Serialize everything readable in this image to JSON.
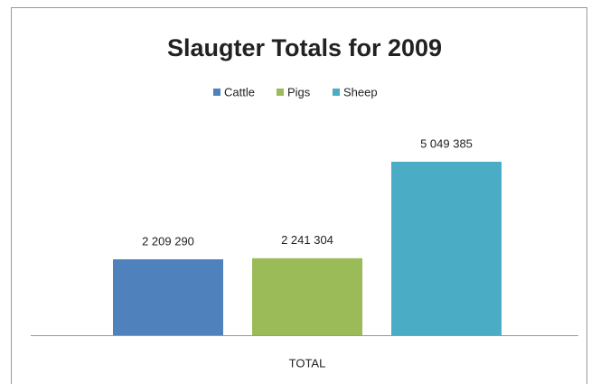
{
  "chart_data": {
    "type": "bar",
    "title": "Slaugter Totals for 2009",
    "categories": [
      "TOTAL"
    ],
    "series": [
      {
        "name": "Cattle",
        "color": "#4f81bd",
        "values": [
          2209290
        ],
        "value_labels": [
          "2 209 290"
        ]
      },
      {
        "name": "Pigs",
        "color": "#9bbb59",
        "values": [
          2241304
        ],
        "value_labels": [
          "2 241 304"
        ]
      },
      {
        "name": "Sheep",
        "color": "#4bacc6",
        "values": [
          5049385
        ],
        "value_labels": [
          "5 049 385"
        ]
      }
    ],
    "legend": "top"
  }
}
